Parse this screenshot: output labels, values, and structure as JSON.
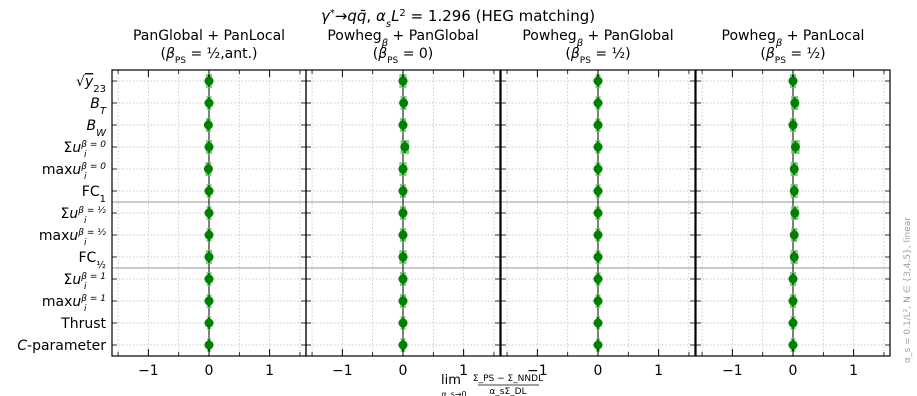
{
  "chart_data": {
    "type": "scatter",
    "title": "γ*→qq̄, α_sL² = 1.296 (HEG matching)",
    "title_parts": {
      "pre": "γ",
      "sup1": "*",
      "mid": "→q",
      "qbar": "q̄",
      "comma": ", ",
      "alpha": "α",
      "alpha_sub": "s",
      "L": "L",
      "L_sup": "2",
      "rest": " = 1.296 (HEG matching)"
    },
    "xlabel": {
      "lim": "lim",
      "lim_sub": "α_s→0",
      "numerator": "Σ_PS − Σ_NNDL",
      "denominator": "α_sΣ_DL"
    },
    "side_note": "α_s = 0.1/L², N ∈ {3,4,5}, linear",
    "xlim": [
      -1.6,
      1.6
    ],
    "xticks": [
      -1,
      0,
      1
    ],
    "xtick_labels": [
      "−1",
      "0",
      "1"
    ],
    "grid": true,
    "observables": [
      {
        "label": "√y₂₃",
        "base": "√",
        "main": "y",
        "sub": "23"
      },
      {
        "label": "B_T",
        "base": "B",
        "sub": "T"
      },
      {
        "label": "B_W",
        "base": "B",
        "sub": "W"
      },
      {
        "label": "Σu_i^{β=0}",
        "base": "Σu",
        "sub": "i",
        "sup": "β = 0"
      },
      {
        "label": "max u_i^{β=0}",
        "base": "maxu",
        "sub": "i",
        "sup": "β = 0"
      },
      {
        "label": "FC₁",
        "base": "FC",
        "sub": "1"
      },
      {
        "label": "Σu_i^{β=1/2}",
        "base": "Σu",
        "sub": "i",
        "sup": "β = ½"
      },
      {
        "label": "max u_i^{β=1/2}",
        "base": "maxu",
        "sub": "i",
        "sup": "β = ½"
      },
      {
        "label": "FC_{1/2}",
        "base": "FC",
        "sub": "½"
      },
      {
        "label": "Σu_i^{β=1}",
        "base": "Σu",
        "sub": "i",
        "sup": "β = 1"
      },
      {
        "label": "max u_i^{β=1}",
        "base": "maxu",
        "sub": "i",
        "sup": "β = 1"
      },
      {
        "label": "Thrust",
        "base": "Thrust"
      },
      {
        "label": "C-parameter",
        "base": "C",
        "rest": "-parameter"
      }
    ],
    "separators_after": [
      5,
      8
    ],
    "panels": [
      {
        "title_line1": "PanGlobal + PanLocal",
        "title_line2": "(β_PS = ½, ant.)",
        "beta": "½",
        "suffix": ",ant.)",
        "values": [
          0.0,
          0.0,
          -0.01,
          0.0,
          -0.01,
          0.0,
          0.0,
          0.0,
          0.0,
          0.0,
          0.0,
          0.0,
          0.0
        ],
        "errors": [
          0.05,
          0.04,
          0.04,
          0.05,
          0.05,
          0.04,
          0.04,
          0.04,
          0.05,
          0.04,
          0.04,
          0.03,
          0.03
        ]
      },
      {
        "title_line1": "Powheg_β + PanGlobal",
        "title_line2": "(β_PS = 0)",
        "beta": "0",
        "suffix": ")",
        "values": [
          0.0,
          0.01,
          0.0,
          0.03,
          0.0,
          0.0,
          0.0,
          0.0,
          0.0,
          0.0,
          0.0,
          0.0,
          0.0
        ],
        "errors": [
          0.06,
          0.05,
          0.05,
          0.07,
          0.06,
          0.05,
          0.05,
          0.05,
          0.06,
          0.05,
          0.05,
          0.04,
          0.04
        ]
      },
      {
        "title_line1": "Powheg_β + PanGlobal",
        "title_line2": "(β_PS = ½)",
        "beta": "½",
        "suffix": ")",
        "values": [
          0.0,
          0.0,
          0.0,
          0.0,
          0.0,
          0.0,
          0.0,
          0.0,
          0.0,
          0.0,
          0.0,
          0.0,
          0.0
        ],
        "errors": [
          0.04,
          0.04,
          0.04,
          0.04,
          0.04,
          0.04,
          0.04,
          0.04,
          0.04,
          0.04,
          0.04,
          0.03,
          0.03
        ]
      },
      {
        "title_line1": "Powheg_β + PanLocal",
        "title_line2": "(β_PS = ½)",
        "beta": "½",
        "suffix": ")",
        "values": [
          0.0,
          0.03,
          0.0,
          0.04,
          0.02,
          0.02,
          0.03,
          0.02,
          0.02,
          0.0,
          0.0,
          0.0,
          0.0
        ],
        "errors": [
          0.05,
          0.06,
          0.05,
          0.07,
          0.06,
          0.06,
          0.06,
          0.05,
          0.06,
          0.05,
          0.05,
          0.04,
          0.04
        ]
      }
    ],
    "colors": {
      "point": "#008000",
      "band": "#6cbf6c",
      "grid": "#b8b8b8",
      "separator": "#999999",
      "zero_line": "#000000",
      "side_note": "#a0a0a0"
    }
  }
}
